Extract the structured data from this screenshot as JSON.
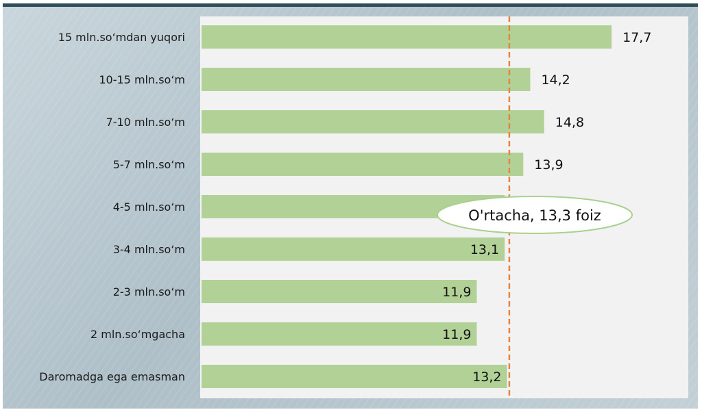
{
  "chart_data": {
    "type": "bar",
    "orientation": "horizontal",
    "categories": [
      "15 mln.so‘mdan yuqori",
      "10-15 mln.so‘m",
      "7-10 mln.so‘m",
      "5-7 mln.so‘m",
      "4-5 mln.so‘m",
      "3-4 mln.so‘m",
      "2-3 mln.so‘m",
      "2 mln.so‘mgacha",
      "Daromadga ega emasman"
    ],
    "values": [
      17.7,
      14.2,
      14.8,
      13.9,
      13.1,
      13.1,
      11.9,
      11.9,
      13.2
    ],
    "value_labels": [
      "17,7",
      "14,2",
      "14,8",
      "13,9",
      "13,1",
      "13,1",
      "11,9",
      "11,9",
      "13,2"
    ],
    "average": {
      "value": 13.3,
      "label": "O'rtacha, 13,3 foiz"
    },
    "xlim": [
      0,
      21
    ],
    "grid": false,
    "legend": "none",
    "colors": {
      "bar": "#b2d197",
      "average_line": "#e8823c",
      "ellipse_border": "#a9d08e",
      "plot_bg": "#f2f2f2"
    }
  }
}
